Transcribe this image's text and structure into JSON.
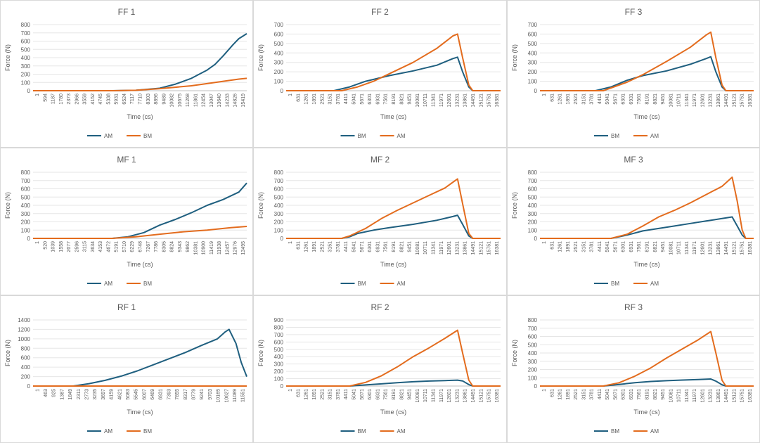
{
  "colors": {
    "AM": "#1f5f7f",
    "BM": "#e36c1e",
    "axis": "#bfbfbf",
    "grid": "#e6e6e6",
    "text": "#595959"
  },
  "chart_data": [
    {
      "id": "ff1",
      "type": "line",
      "title": "FF 1",
      "xlabel": "Time (cs)",
      "ylabel": "Force (N)",
      "ylim": [
        0,
        800
      ],
      "yticks": [
        0,
        100,
        200,
        300,
        400,
        500,
        600,
        700,
        800
      ],
      "xlim": [
        1,
        16012
      ],
      "xticks": [
        "1",
        "594",
        "1187",
        "1780",
        "2373",
        "2966",
        "3559",
        "4152",
        "4745",
        "5338",
        "5931",
        "6524",
        "7117",
        "7710",
        "8303",
        "8896",
        "9489",
        "10082",
        "10675",
        "11268",
        "11861",
        "12454",
        "13047",
        "13640",
        "14233",
        "14826",
        "15419"
      ],
      "legend": [
        "AM",
        "BM"
      ],
      "series": [
        {
          "name": "AM",
          "key": "AM",
          "x": [
            1,
            5931,
            7710,
            9489,
            10675,
            11861,
            13047,
            13640,
            14233,
            15000,
            15419,
            16012
          ],
          "y": [
            0,
            0,
            5,
            30,
            80,
            150,
            250,
            320,
            420,
            560,
            630,
            690
          ]
        },
        {
          "name": "BM",
          "key": "BM",
          "x": [
            1,
            5931,
            7710,
            9489,
            11861,
            13640,
            15419,
            16012
          ],
          "y": [
            0,
            0,
            5,
            25,
            60,
            100,
            140,
            150
          ]
        }
      ]
    },
    {
      "id": "ff2",
      "type": "line",
      "title": "FF 2",
      "xlabel": "Time (cs)",
      "ylabel": "Force (N)",
      "ylim": [
        0,
        700
      ],
      "yticks": [
        0,
        100,
        200,
        300,
        400,
        500,
        600,
        700
      ],
      "xlim": [
        1,
        17011
      ],
      "xticks": [
        "1",
        "631",
        "1261",
        "1891",
        "2521",
        "3151",
        "3781",
        "4411",
        "5041",
        "5671",
        "6301",
        "6931",
        "7561",
        "8191",
        "8821",
        "9451",
        "10081",
        "10711",
        "11341",
        "11971",
        "12601",
        "13231",
        "13861",
        "14491",
        "15121",
        "15751",
        "16381"
      ],
      "legend": [
        "BM",
        "AM"
      ],
      "series": [
        {
          "name": "BM",
          "key": "AM",
          "x": [
            1,
            3781,
            5041,
            6301,
            8191,
            10081,
            11971,
            13231,
            13600,
            14000,
            14491,
            14800,
            17011
          ],
          "y": [
            0,
            0,
            40,
            100,
            160,
            210,
            270,
            340,
            355,
            200,
            40,
            0,
            0
          ]
        },
        {
          "name": "AM",
          "key": "BM",
          "x": [
            1,
            4411,
            5671,
            6931,
            8191,
            10081,
            11971,
            13231,
            13600,
            14000,
            14491,
            14800,
            17011
          ],
          "y": [
            0,
            0,
            40,
            100,
            180,
            300,
            450,
            580,
            600,
            350,
            60,
            0,
            0
          ]
        }
      ]
    },
    {
      "id": "ff3",
      "type": "line",
      "title": "FF 3",
      "xlabel": "Time (cs)",
      "ylabel": "Force (N)",
      "ylim": [
        0,
        700
      ],
      "yticks": [
        0,
        100,
        200,
        300,
        400,
        500,
        600,
        700
      ],
      "xlim": [
        1,
        17011
      ],
      "xticks": [
        "1",
        "631",
        "1261",
        "1891",
        "2521",
        "3151",
        "3781",
        "4411",
        "5041",
        "5671",
        "6301",
        "6931",
        "7561",
        "8191",
        "8821",
        "9451",
        "10081",
        "10711",
        "11341",
        "11971",
        "12601",
        "13231",
        "13861",
        "14491",
        "15121",
        "15751",
        "16381"
      ],
      "legend": [
        "BM",
        "AM"
      ],
      "series": [
        {
          "name": "BM",
          "key": "AM",
          "x": [
            1,
            4411,
            5671,
            6931,
            8191,
            10081,
            11971,
            13231,
            13600,
            14000,
            14491,
            14800,
            17011
          ],
          "y": [
            0,
            0,
            40,
            110,
            160,
            210,
            280,
            340,
            360,
            200,
            40,
            0,
            0
          ]
        },
        {
          "name": "AM",
          "key": "BM",
          "x": [
            1,
            5041,
            5671,
            6931,
            8191,
            10081,
            11971,
            13231,
            13600,
            14000,
            14491,
            14800,
            17011
          ],
          "y": [
            0,
            0,
            30,
            90,
            170,
            310,
            460,
            590,
            620,
            350,
            60,
            0,
            0
          ]
        }
      ]
    },
    {
      "id": "mf1",
      "type": "line",
      "title": "MF 1",
      "xlabel": "Time (cs)",
      "ylabel": "Force (N)",
      "ylim": [
        0,
        800
      ],
      "yticks": [
        0,
        100,
        200,
        300,
        400,
        500,
        600,
        700,
        800
      ],
      "xlim": [
        1,
        14017
      ],
      "xticks": [
        "1",
        "520",
        "1039",
        "1558",
        "2077",
        "2596",
        "3115",
        "3634",
        "4153",
        "4672",
        "5191",
        "5710",
        "6229",
        "6748",
        "7267",
        "7786",
        "8305",
        "8824",
        "9343",
        "9862",
        "10381",
        "10900",
        "11419",
        "11938",
        "12457",
        "12976",
        "13495"
      ],
      "legend": [
        "AM",
        "BM"
      ],
      "series": [
        {
          "name": "AM",
          "key": "AM",
          "x": [
            1,
            5191,
            6229,
            7267,
            8305,
            9343,
            10381,
            11419,
            12457,
            13495,
            14017
          ],
          "y": [
            0,
            0,
            20,
            70,
            160,
            230,
            310,
            400,
            470,
            560,
            670
          ]
        },
        {
          "name": "BM",
          "key": "BM",
          "x": [
            1,
            5191,
            6748,
            8305,
            9862,
            11419,
            12976,
            14017
          ],
          "y": [
            0,
            0,
            20,
            50,
            80,
            100,
            130,
            145
          ]
        }
      ]
    },
    {
      "id": "mf2",
      "type": "line",
      "title": "MF 2",
      "xlabel": "Time (cs)",
      "ylabel": "Force (N)",
      "ylim": [
        0,
        800
      ],
      "yticks": [
        0,
        100,
        200,
        300,
        400,
        500,
        600,
        700,
        800
      ],
      "xlim": [
        1,
        17011
      ],
      "xticks": [
        "1",
        "631",
        "1261",
        "1891",
        "2521",
        "3151",
        "3781",
        "4411",
        "5041",
        "5671",
        "6301",
        "6931",
        "7561",
        "8191",
        "8821",
        "9451",
        "10081",
        "10711",
        "11341",
        "11971",
        "12601",
        "13231",
        "13861",
        "14491",
        "15121",
        "15751",
        "16381"
      ],
      "legend": [
        "BM",
        "AM"
      ],
      "series": [
        {
          "name": "BM",
          "key": "AM",
          "x": [
            1,
            4411,
            5041,
            5671,
            6931,
            8191,
            10081,
            11971,
            13231,
            13600,
            14000,
            14491,
            14800,
            17011
          ],
          "y": [
            0,
            0,
            20,
            60,
            100,
            130,
            170,
            220,
            265,
            280,
            170,
            30,
            0,
            0
          ]
        },
        {
          "name": "AM",
          "key": "BM",
          "x": [
            1,
            4411,
            5041,
            6301,
            7561,
            8821,
            10081,
            11341,
            12601,
            13600,
            14000,
            14491,
            14800,
            17011
          ],
          "y": [
            0,
            0,
            30,
            120,
            240,
            340,
            430,
            520,
            610,
            720,
            420,
            60,
            0,
            0
          ]
        }
      ]
    },
    {
      "id": "mf3",
      "type": "line",
      "title": "MF 3",
      "xlabel": "Time (cs)",
      "ylabel": "Force (N)",
      "ylim": [
        0,
        800
      ],
      "yticks": [
        0,
        100,
        200,
        300,
        400,
        500,
        600,
        700,
        800
      ],
      "xlim": [
        1,
        17011
      ],
      "xticks": [
        "1",
        "631",
        "1261",
        "1891",
        "2521",
        "3151",
        "3781",
        "4411",
        "5041",
        "5671",
        "6301",
        "6931",
        "7561",
        "8191",
        "8821",
        "9451",
        "10081",
        "10711",
        "11341",
        "11971",
        "12601",
        "13231",
        "13861",
        "14491",
        "15121",
        "15751",
        "16381"
      ],
      "legend": [
        "BM",
        "AM"
      ],
      "series": [
        {
          "name": "BM",
          "key": "AM",
          "x": [
            1,
            5671,
            6931,
            8191,
            9451,
            10711,
            11971,
            13231,
            14491,
            15300,
            15700,
            16100,
            16381,
            17011
          ],
          "y": [
            0,
            0,
            40,
            90,
            120,
            150,
            180,
            210,
            240,
            260,
            150,
            40,
            0,
            0
          ]
        },
        {
          "name": "AM",
          "key": "BM",
          "x": [
            1,
            5671,
            6931,
            8191,
            9451,
            10711,
            11971,
            13231,
            14491,
            15300,
            15700,
            16100,
            16381,
            17011
          ],
          "y": [
            0,
            0,
            50,
            150,
            260,
            340,
            430,
            530,
            630,
            740,
            450,
            100,
            0,
            0
          ]
        }
      ]
    },
    {
      "id": "rf1",
      "type": "line",
      "title": "RF 1",
      "xlabel": "Time (cs)",
      "ylabel": "Force (N)",
      "ylim": [
        0,
        1400
      ],
      "yticks": [
        0,
        200,
        400,
        600,
        800,
        1000,
        1200,
        1400
      ],
      "xlim": [
        1,
        12320
      ],
      "xticks": [
        "1",
        "463",
        "925",
        "1387",
        "1849",
        "2311",
        "2773",
        "3235",
        "3697",
        "4159",
        "4621",
        "5083",
        "5545",
        "6007",
        "6469",
        "6931",
        "7393",
        "7855",
        "8317",
        "8779",
        "9241",
        "9703",
        "10165",
        "10627",
        "11089",
        "11551"
      ],
      "legend": [
        "AM",
        "BM"
      ],
      "series": [
        {
          "name": "AM",
          "key": "AM",
          "x": [
            1,
            2311,
            3235,
            4159,
            5083,
            6007,
            6931,
            7855,
            8779,
            9703,
            10627,
            11089,
            11300,
            11700,
            12000,
            12320
          ],
          "y": [
            0,
            0,
            50,
            120,
            210,
            320,
            450,
            580,
            710,
            860,
            1000,
            1150,
            1200,
            900,
            500,
            200
          ]
        },
        {
          "name": "BM",
          "key": "BM",
          "x": [
            1,
            12320
          ],
          "y": [
            0,
            0
          ]
        }
      ]
    },
    {
      "id": "rf2",
      "type": "line",
      "title": "RF 2",
      "xlabel": "Time (cs)",
      "ylabel": "Force (N)",
      "ylim": [
        0,
        900
      ],
      "yticks": [
        0,
        100,
        200,
        300,
        400,
        500,
        600,
        700,
        800,
        900
      ],
      "xlim": [
        1,
        17011
      ],
      "xticks": [
        "1",
        "631",
        "1261",
        "1891",
        "2521",
        "3151",
        "3781",
        "4411",
        "5041",
        "5671",
        "6301",
        "6931",
        "7561",
        "8191",
        "8821",
        "9451",
        "10081",
        "10711",
        "11341",
        "11971",
        "12601",
        "13231",
        "13861",
        "14491",
        "15121",
        "15751",
        "16381"
      ],
      "legend": [
        "BM",
        "AM"
      ],
      "series": [
        {
          "name": "BM",
          "key": "AM",
          "x": [
            1,
            5041,
            6301,
            7561,
            8821,
            10081,
            11341,
            12601,
            13600,
            14000,
            14491,
            14800,
            17011
          ],
          "y": [
            0,
            0,
            15,
            30,
            45,
            58,
            68,
            75,
            80,
            70,
            20,
            0,
            0
          ]
        },
        {
          "name": "AM",
          "key": "BM",
          "x": [
            1,
            5041,
            6301,
            7561,
            8821,
            10081,
            11341,
            12601,
            13600,
            14000,
            14491,
            14800,
            17011
          ],
          "y": [
            0,
            0,
            50,
            140,
            260,
            400,
            520,
            650,
            760,
            450,
            80,
            0,
            0
          ]
        }
      ]
    },
    {
      "id": "rf3",
      "type": "line",
      "title": "RF 3",
      "xlabel": "Time (cs)",
      "ylabel": "Force (N)",
      "ylim": [
        0,
        800
      ],
      "yticks": [
        0,
        100,
        200,
        300,
        400,
        500,
        600,
        700,
        800
      ],
      "xlim": [
        1,
        17011
      ],
      "xticks": [
        "1",
        "631",
        "1261",
        "1891",
        "2521",
        "3151",
        "3781",
        "4411",
        "5041",
        "5671",
        "6301",
        "6931",
        "7561",
        "8191",
        "8821",
        "9451",
        "10081",
        "10711",
        "11341",
        "11971",
        "12601",
        "13231",
        "13861",
        "14491",
        "15121",
        "15751",
        "16381"
      ],
      "legend": [
        "BM",
        "AM"
      ],
      "series": [
        {
          "name": "BM",
          "key": "AM",
          "x": [
            1,
            5041,
            6301,
            7561,
            8821,
            10081,
            11341,
            12601,
            13600,
            14000,
            14491,
            14800,
            17011
          ],
          "y": [
            0,
            0,
            20,
            40,
            55,
            65,
            72,
            78,
            85,
            60,
            15,
            0,
            0
          ]
        },
        {
          "name": "AM",
          "key": "BM",
          "x": [
            1,
            5041,
            6301,
            7561,
            8821,
            10081,
            11341,
            12601,
            13600,
            14000,
            14491,
            14800,
            17011
          ],
          "y": [
            0,
            0,
            40,
            120,
            220,
            340,
            450,
            560,
            660,
            400,
            70,
            0,
            0
          ]
        }
      ]
    }
  ]
}
